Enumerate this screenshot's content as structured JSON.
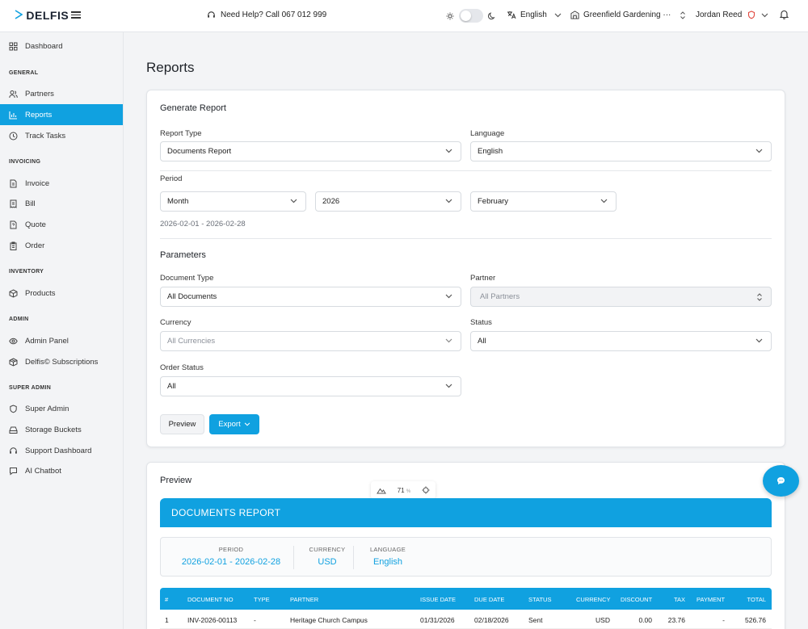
{
  "header": {
    "logo_text": "DELFIS",
    "help_text": "Need Help? Call 067 012 999",
    "language": "English",
    "company": "Greenfield Gardening ···",
    "user": "Jordan Reed"
  },
  "sidebar": {
    "dashboard": "Dashboard",
    "sections": {
      "general": "GENERAL",
      "invoicing": "INVOICING",
      "inventory": "INVENTORY",
      "admin": "ADMIN",
      "super_admin": "SUPER ADMIN"
    },
    "items": {
      "partners": "Partners",
      "reports": "Reports",
      "track_tasks": "Track Tasks",
      "invoice": "Invoice",
      "bill": "Bill",
      "quote": "Quote",
      "order": "Order",
      "products": "Products",
      "admin_panel": "Admin Panel",
      "subscriptions": "Delfis© Subscriptions",
      "super_admin": "Super Admin",
      "storage_buckets": "Storage Buckets",
      "support_dashboard": "Support Dashboard",
      "ai_chatbot": "AI Chatbot"
    },
    "active": "reports"
  },
  "page": {
    "title": "Reports"
  },
  "generate": {
    "title": "Generate Report",
    "report_type_label": "Report Type",
    "report_type_value": "Documents Report",
    "language_label": "Language",
    "language_value": "English",
    "period_label": "Period",
    "period_unit": "Month",
    "period_year": "2026",
    "period_month": "February",
    "period_range": "2026-02-01 - 2026-02-28",
    "parameters_title": "Parameters",
    "document_type_label": "Document Type",
    "document_type_value": "All Documents",
    "partner_label": "Partner",
    "partner_value": "All Partners",
    "currency_label": "Currency",
    "currency_value": "All Currencies",
    "status_label": "Status",
    "status_value": "All",
    "order_status_label": "Order Status",
    "order_status_value": "All",
    "preview_button": "Preview",
    "export_button": "Export"
  },
  "preview": {
    "title": "Preview",
    "zoom": "71",
    "zoom_unit": "%",
    "report_title": "DOCUMENTS REPORT",
    "meta": {
      "period_label": "PERIOD",
      "period_value": "2026-02-01 - 2026-02-28",
      "currency_label": "CURRENCY",
      "currency_value": "USD",
      "language_label": "LANGUAGE",
      "language_value": "English"
    },
    "columns": {
      "num": "#",
      "doc_no": "DOCUMENT NO",
      "type": "TYPE",
      "partner": "PARTNER",
      "issue": "ISSUE DATE",
      "due": "DUE DATE",
      "status": "STATUS",
      "currency": "CURRENCY",
      "discount": "DISCOUNT",
      "tax": "TAX",
      "payment": "PAYMENT",
      "total": "TOTAL"
    },
    "rows": [
      {
        "num": "1",
        "doc_no": "INV-2026-00113",
        "type": "-",
        "partner": "Heritage Church Campus",
        "issue": "01/31/2026",
        "due": "02/18/2026",
        "status": "Sent",
        "currency": "USD",
        "discount": "0.00",
        "tax": "23.76",
        "payment": "-",
        "total": "526.76"
      }
    ]
  },
  "colors": {
    "accent": "#10a1e0",
    "bg": "#f3f4f6"
  }
}
